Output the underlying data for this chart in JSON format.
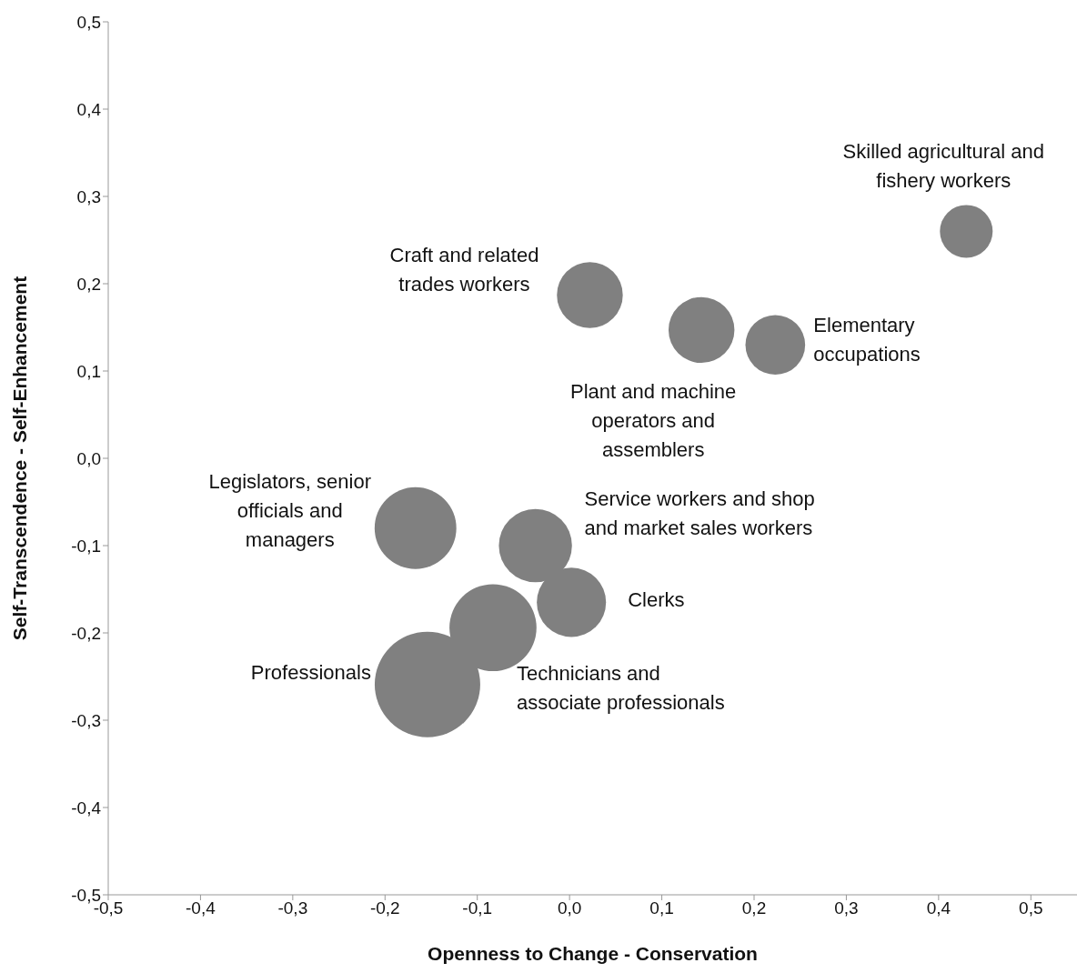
{
  "chart_data": {
    "type": "bubble",
    "xlabel": "Openness to Change - Conservation",
    "ylabel": "Self-Transcendence - Self-Enhancement",
    "x": [
      0.43,
      0.022,
      0.143,
      0.223,
      -0.167,
      -0.037,
      0.002,
      -0.083,
      -0.154
    ],
    "values": [
      0.26,
      0.187,
      0.147,
      0.13,
      -0.08,
      -0.1,
      -0.165,
      -0.194,
      -0.259
    ],
    "sizes": [
      0.25,
      0.39,
      0.39,
      0.32,
      0.6,
      0.48,
      0.43,
      0.68,
      1
    ],
    "color": "#808080",
    "xlim": [
      -0.5,
      0.55
    ],
    "xticks": [
      {
        "value": -0.5,
        "label": "-0,5"
      },
      {
        "value": -0.4,
        "label": "-0,4"
      },
      {
        "value": -0.3,
        "label": "-0,3"
      },
      {
        "value": -0.2,
        "label": "-0,2"
      },
      {
        "value": -0.1,
        "label": "-0,1"
      },
      {
        "value": 0,
        "label": "0,0"
      },
      {
        "value": 0.1,
        "label": "0,1"
      },
      {
        "value": 0.2,
        "label": "0,2"
      },
      {
        "value": 0.3,
        "label": "0,3"
      },
      {
        "value": 0.4,
        "label": "0,4"
      },
      {
        "value": 0.5,
        "label": "0,5"
      }
    ],
    "ylim": [
      -0.5,
      0.5
    ],
    "yticks": [
      {
        "value": -0.5,
        "label": "-0,5"
      },
      {
        "value": -0.4,
        "label": "-0,4"
      },
      {
        "value": -0.3,
        "label": "-0,3"
      },
      {
        "value": -0.2,
        "label": "-0,2"
      },
      {
        "value": -0.1,
        "label": "-0,1"
      },
      {
        "value": 0,
        "label": "0,0"
      },
      {
        "value": 0.1,
        "label": "0,1"
      },
      {
        "value": 0.2,
        "label": "0,2"
      },
      {
        "value": 0.3,
        "label": "0,3"
      },
      {
        "value": 0.4,
        "label": "0,4"
      },
      {
        "value": 0.5,
        "label": "0,5"
      }
    ],
    "grid": false,
    "legend": false,
    "annotations": [
      {
        "text": "Skilled agricultural and\nfishery workers",
        "x": 0.43,
        "y": 0.26
      },
      {
        "text": "Craft and related\ntrades workers",
        "x": 0.022,
        "y": 0.187
      },
      {
        "text": "Plant and machine\noperators and\nassemblers",
        "x": 0.143,
        "y": 0.147
      },
      {
        "text": "Elementary\noccupations",
        "x": 0.223,
        "y": 0.13
      },
      {
        "text": "Legislators, senior\nofficials and\nmanagers",
        "x": -0.167,
        "y": -0.08
      },
      {
        "text": "Service workers and shop\nand market sales workers",
        "x": -0.037,
        "y": -0.1
      },
      {
        "text": "Clerks",
        "x": 0.002,
        "y": -0.165
      },
      {
        "text": "Technicians and\nassociate professionals",
        "x": -0.083,
        "y": -0.194
      },
      {
        "text": "Professionals",
        "x": -0.154,
        "y": -0.259
      }
    ]
  }
}
